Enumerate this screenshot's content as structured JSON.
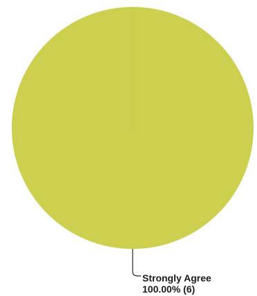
{
  "chart_data": {
    "type": "pie",
    "title": "",
    "slices": [
      {
        "name": "Strongly Agree",
        "percent_label": "100.00% (6)",
        "value": 6,
        "percent": 100.0,
        "color": "#cdcf4f"
      }
    ],
    "total": 6
  }
}
